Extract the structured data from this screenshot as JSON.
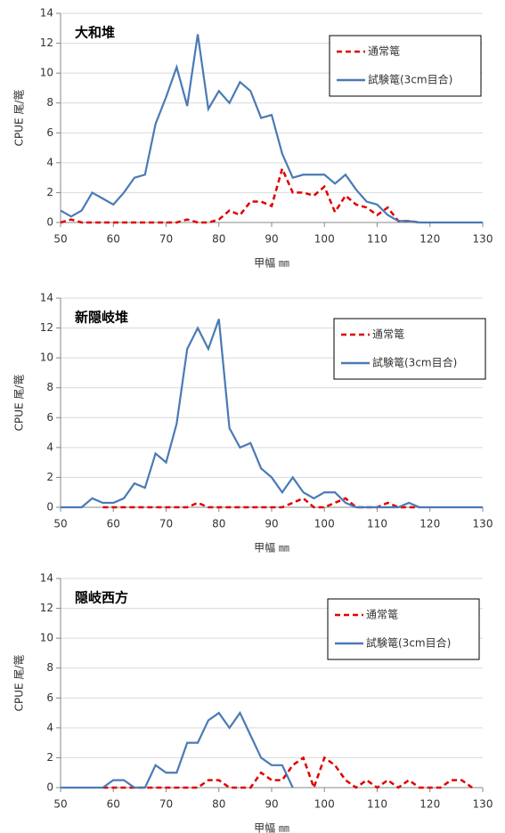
{
  "chart_data": [
    {
      "type": "line",
      "title": "大和堆",
      "x_label": "甲幅 ㎜",
      "y_label": "CPUE 尾/篭",
      "x": [
        50,
        52,
        54,
        56,
        58,
        60,
        62,
        64,
        66,
        68,
        70,
        72,
        74,
        76,
        78,
        80,
        82,
        84,
        86,
        88,
        90,
        92,
        94,
        96,
        98,
        100,
        102,
        104,
        106,
        108,
        110,
        112,
        114,
        116,
        118,
        120,
        122,
        124,
        126,
        128,
        130
      ],
      "series": [
        {
          "name": "通常篭",
          "color": "#e00000",
          "dash": true,
          "values": [
            0,
            0.2,
            0,
            0,
            0,
            0,
            0,
            0,
            0,
            0,
            0,
            0,
            0.2,
            0,
            0,
            0.2,
            0.8,
            0.5,
            1.4,
            1.4,
            1.1,
            3.6,
            2.0,
            2.0,
            1.8,
            2.4,
            0.7,
            1.8,
            1.2,
            1.0,
            0.5,
            1.0,
            0.1,
            0.1,
            0,
            null,
            null,
            null,
            null,
            null,
            null
          ]
        },
        {
          "name": "試験篭(3cm目合)",
          "color": "#4a7ab5",
          "dash": false,
          "values": [
            0.8,
            0.4,
            0.8,
            2.0,
            1.6,
            1.2,
            2.0,
            3.0,
            3.2,
            6.6,
            8.4,
            10.4,
            7.8,
            12.6,
            7.6,
            8.8,
            8.0,
            9.4,
            8.8,
            7.0,
            7.2,
            4.6,
            3.0,
            3.2,
            3.2,
            3.2,
            2.6,
            3.2,
            2.2,
            1.4,
            1.2,
            0.5,
            0.1,
            0.1,
            0,
            0,
            0,
            0,
            0,
            0,
            0
          ]
        }
      ],
      "xlim": [
        50,
        130
      ],
      "ylim": [
        0,
        14
      ],
      "xticks": [
        50,
        60,
        70,
        80,
        90,
        100,
        110,
        120,
        130
      ],
      "yticks": [
        0,
        2,
        4,
        6,
        8,
        10,
        12,
        14
      ],
      "grid": true
    },
    {
      "type": "line",
      "title": "新隠岐堆",
      "x_label": "甲幅 ㎜",
      "y_label": "CPUE 尾/篭",
      "x": [
        50,
        52,
        54,
        56,
        58,
        60,
        62,
        64,
        66,
        68,
        70,
        72,
        74,
        76,
        78,
        80,
        82,
        84,
        86,
        88,
        90,
        92,
        94,
        96,
        98,
        100,
        102,
        104,
        106,
        108,
        110,
        112,
        114,
        116,
        118,
        120,
        122,
        124,
        126,
        128,
        130
      ],
      "series": [
        {
          "name": "通常篭",
          "color": "#e00000",
          "dash": true,
          "values": [
            null,
            null,
            null,
            null,
            0,
            0,
            0,
            0,
            0,
            0,
            0,
            0,
            0,
            0.3,
            0,
            0,
            0,
            0,
            0,
            0,
            0,
            0,
            0.3,
            0.6,
            0,
            0,
            0.3,
            0.6,
            0,
            0,
            0,
            0.3,
            0,
            0,
            0,
            null,
            null,
            null,
            null,
            null,
            null
          ]
        },
        {
          "name": "試験篭(3cm目合)",
          "color": "#4a7ab5",
          "dash": false,
          "values": [
            0,
            0,
            0,
            0.6,
            0.3,
            0.3,
            0.6,
            1.6,
            1.3,
            3.6,
            3.0,
            5.6,
            10.6,
            12.0,
            10.6,
            12.6,
            5.3,
            4.0,
            4.3,
            2.6,
            2.0,
            1.0,
            2.0,
            1.0,
            0.6,
            1.0,
            1.0,
            0.3,
            0,
            0,
            0,
            0,
            0,
            0.3,
            0,
            0,
            0,
            0,
            0,
            0,
            0
          ]
        }
      ],
      "xlim": [
        50,
        130
      ],
      "ylim": [
        0,
        14
      ],
      "xticks": [
        50,
        60,
        70,
        80,
        90,
        100,
        110,
        120,
        130
      ],
      "yticks": [
        0,
        2,
        4,
        6,
        8,
        10,
        12,
        14
      ],
      "grid": true
    },
    {
      "type": "line",
      "title": "隠岐西方",
      "x_label": "甲幅 ㎜",
      "y_label": "CPUE 尾/篭",
      "x": [
        50,
        52,
        54,
        56,
        58,
        60,
        62,
        64,
        66,
        68,
        70,
        72,
        74,
        76,
        78,
        80,
        82,
        84,
        86,
        88,
        90,
        92,
        94,
        96,
        98,
        100,
        102,
        104,
        106,
        108,
        110,
        112,
        114,
        116,
        118,
        120,
        122,
        124,
        126,
        128,
        130
      ],
      "series": [
        {
          "name": "通常篭",
          "color": "#e00000",
          "dash": true,
          "values": [
            null,
            null,
            null,
            null,
            0,
            0,
            0,
            0,
            0,
            0,
            0,
            0,
            0,
            0,
            0.5,
            0.5,
            0,
            0,
            0,
            1.0,
            0.5,
            0.5,
            1.5,
            2.0,
            0,
            2.0,
            1.5,
            0.5,
            0,
            0.5,
            0,
            0.5,
            0,
            0.5,
            0,
            0,
            0,
            0.5,
            0.5,
            0,
            null
          ]
        },
        {
          "name": "試験篭(3cm目合)",
          "color": "#4a7ab5",
          "dash": false,
          "values": [
            0,
            0,
            0,
            0,
            0,
            0.5,
            0.5,
            0,
            0,
            1.5,
            1.0,
            1.0,
            3.0,
            3.0,
            4.5,
            5.0,
            4.0,
            5.0,
            3.5,
            2.0,
            1.5,
            1.5,
            0,
            null,
            null,
            null,
            null,
            null,
            null,
            null,
            null,
            null,
            null,
            null,
            null,
            null,
            null,
            null,
            null,
            null,
            null
          ]
        }
      ],
      "xlim": [
        50,
        130
      ],
      "ylim": [
        0,
        14
      ],
      "xticks": [
        50,
        60,
        70,
        80,
        90,
        100,
        110,
        120,
        130
      ],
      "yticks": [
        0,
        2,
        4,
        6,
        8,
        10,
        12,
        14
      ],
      "grid": true
    }
  ]
}
